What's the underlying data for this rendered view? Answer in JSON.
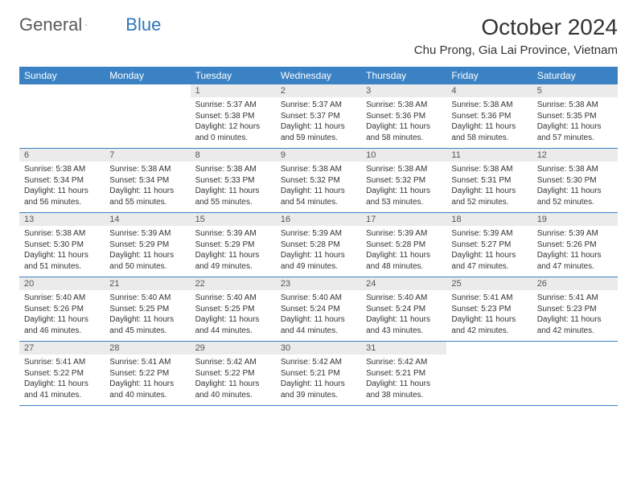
{
  "logo": {
    "text1": "General",
    "text2": "Blue"
  },
  "title": "October 2024",
  "location": "Chu Prong, Gia Lai Province, Vietnam",
  "colors": {
    "header_bg": "#3b82c4",
    "header_text": "#ffffff",
    "daynum_bg": "#ebebeb",
    "row_border": "#3b82c4",
    "logo_blue": "#2f77bb",
    "title_color": "#333333"
  },
  "typography": {
    "title_fontsize": 28,
    "location_fontsize": 15,
    "weekday_fontsize": 12,
    "daynum_fontsize": 11,
    "body_fontsize": 10
  },
  "weekdays": [
    "Sunday",
    "Monday",
    "Tuesday",
    "Wednesday",
    "Thursday",
    "Friday",
    "Saturday"
  ],
  "weeks": [
    [
      {
        "empty": true
      },
      {
        "empty": true
      },
      {
        "day": "1",
        "sunrise": "Sunrise: 5:37 AM",
        "sunset": "Sunset: 5:38 PM",
        "daylight": "Daylight: 12 hours and 0 minutes."
      },
      {
        "day": "2",
        "sunrise": "Sunrise: 5:37 AM",
        "sunset": "Sunset: 5:37 PM",
        "daylight": "Daylight: 11 hours and 59 minutes."
      },
      {
        "day": "3",
        "sunrise": "Sunrise: 5:38 AM",
        "sunset": "Sunset: 5:36 PM",
        "daylight": "Daylight: 11 hours and 58 minutes."
      },
      {
        "day": "4",
        "sunrise": "Sunrise: 5:38 AM",
        "sunset": "Sunset: 5:36 PM",
        "daylight": "Daylight: 11 hours and 58 minutes."
      },
      {
        "day": "5",
        "sunrise": "Sunrise: 5:38 AM",
        "sunset": "Sunset: 5:35 PM",
        "daylight": "Daylight: 11 hours and 57 minutes."
      }
    ],
    [
      {
        "day": "6",
        "sunrise": "Sunrise: 5:38 AM",
        "sunset": "Sunset: 5:34 PM",
        "daylight": "Daylight: 11 hours and 56 minutes."
      },
      {
        "day": "7",
        "sunrise": "Sunrise: 5:38 AM",
        "sunset": "Sunset: 5:34 PM",
        "daylight": "Daylight: 11 hours and 55 minutes."
      },
      {
        "day": "8",
        "sunrise": "Sunrise: 5:38 AM",
        "sunset": "Sunset: 5:33 PM",
        "daylight": "Daylight: 11 hours and 55 minutes."
      },
      {
        "day": "9",
        "sunrise": "Sunrise: 5:38 AM",
        "sunset": "Sunset: 5:32 PM",
        "daylight": "Daylight: 11 hours and 54 minutes."
      },
      {
        "day": "10",
        "sunrise": "Sunrise: 5:38 AM",
        "sunset": "Sunset: 5:32 PM",
        "daylight": "Daylight: 11 hours and 53 minutes."
      },
      {
        "day": "11",
        "sunrise": "Sunrise: 5:38 AM",
        "sunset": "Sunset: 5:31 PM",
        "daylight": "Daylight: 11 hours and 52 minutes."
      },
      {
        "day": "12",
        "sunrise": "Sunrise: 5:38 AM",
        "sunset": "Sunset: 5:30 PM",
        "daylight": "Daylight: 11 hours and 52 minutes."
      }
    ],
    [
      {
        "day": "13",
        "sunrise": "Sunrise: 5:38 AM",
        "sunset": "Sunset: 5:30 PM",
        "daylight": "Daylight: 11 hours and 51 minutes."
      },
      {
        "day": "14",
        "sunrise": "Sunrise: 5:39 AM",
        "sunset": "Sunset: 5:29 PM",
        "daylight": "Daylight: 11 hours and 50 minutes."
      },
      {
        "day": "15",
        "sunrise": "Sunrise: 5:39 AM",
        "sunset": "Sunset: 5:29 PM",
        "daylight": "Daylight: 11 hours and 49 minutes."
      },
      {
        "day": "16",
        "sunrise": "Sunrise: 5:39 AM",
        "sunset": "Sunset: 5:28 PM",
        "daylight": "Daylight: 11 hours and 49 minutes."
      },
      {
        "day": "17",
        "sunrise": "Sunrise: 5:39 AM",
        "sunset": "Sunset: 5:28 PM",
        "daylight": "Daylight: 11 hours and 48 minutes."
      },
      {
        "day": "18",
        "sunrise": "Sunrise: 5:39 AM",
        "sunset": "Sunset: 5:27 PM",
        "daylight": "Daylight: 11 hours and 47 minutes."
      },
      {
        "day": "19",
        "sunrise": "Sunrise: 5:39 AM",
        "sunset": "Sunset: 5:26 PM",
        "daylight": "Daylight: 11 hours and 47 minutes."
      }
    ],
    [
      {
        "day": "20",
        "sunrise": "Sunrise: 5:40 AM",
        "sunset": "Sunset: 5:26 PM",
        "daylight": "Daylight: 11 hours and 46 minutes."
      },
      {
        "day": "21",
        "sunrise": "Sunrise: 5:40 AM",
        "sunset": "Sunset: 5:25 PM",
        "daylight": "Daylight: 11 hours and 45 minutes."
      },
      {
        "day": "22",
        "sunrise": "Sunrise: 5:40 AM",
        "sunset": "Sunset: 5:25 PM",
        "daylight": "Daylight: 11 hours and 44 minutes."
      },
      {
        "day": "23",
        "sunrise": "Sunrise: 5:40 AM",
        "sunset": "Sunset: 5:24 PM",
        "daylight": "Daylight: 11 hours and 44 minutes."
      },
      {
        "day": "24",
        "sunrise": "Sunrise: 5:40 AM",
        "sunset": "Sunset: 5:24 PM",
        "daylight": "Daylight: 11 hours and 43 minutes."
      },
      {
        "day": "25",
        "sunrise": "Sunrise: 5:41 AM",
        "sunset": "Sunset: 5:23 PM",
        "daylight": "Daylight: 11 hours and 42 minutes."
      },
      {
        "day": "26",
        "sunrise": "Sunrise: 5:41 AM",
        "sunset": "Sunset: 5:23 PM",
        "daylight": "Daylight: 11 hours and 42 minutes."
      }
    ],
    [
      {
        "day": "27",
        "sunrise": "Sunrise: 5:41 AM",
        "sunset": "Sunset: 5:22 PM",
        "daylight": "Daylight: 11 hours and 41 minutes."
      },
      {
        "day": "28",
        "sunrise": "Sunrise: 5:41 AM",
        "sunset": "Sunset: 5:22 PM",
        "daylight": "Daylight: 11 hours and 40 minutes."
      },
      {
        "day": "29",
        "sunrise": "Sunrise: 5:42 AM",
        "sunset": "Sunset: 5:22 PM",
        "daylight": "Daylight: 11 hours and 40 minutes."
      },
      {
        "day": "30",
        "sunrise": "Sunrise: 5:42 AM",
        "sunset": "Sunset: 5:21 PM",
        "daylight": "Daylight: 11 hours and 39 minutes."
      },
      {
        "day": "31",
        "sunrise": "Sunrise: 5:42 AM",
        "sunset": "Sunset: 5:21 PM",
        "daylight": "Daylight: 11 hours and 38 minutes."
      },
      {
        "empty": true
      },
      {
        "empty": true
      }
    ]
  ]
}
